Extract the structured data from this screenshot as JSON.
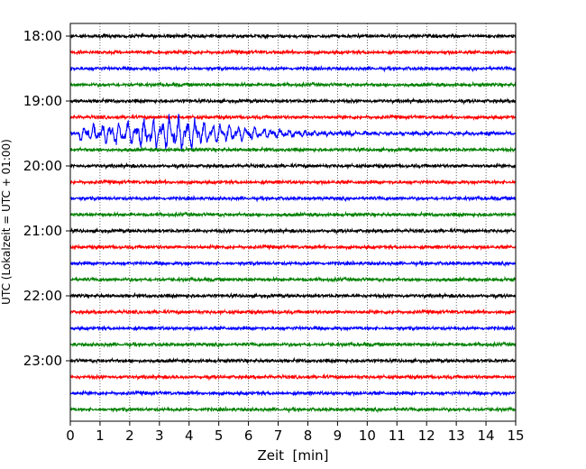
{
  "chart_data": {
    "type": "line",
    "title": "",
    "xlabel": "Zeit  [min]",
    "ylabel": "UTC (Lokalzeit = UTC + 01:00)",
    "xlim": [
      0,
      15
    ],
    "x_ticks": [
      "0",
      "1",
      "2",
      "3",
      "4",
      "5",
      "6",
      "7",
      "8",
      "9",
      "10",
      "11",
      "12",
      "13",
      "14",
      "15"
    ],
    "y_tick_labels": [
      "18:00",
      "19:00",
      "20:00",
      "21:00",
      "22:00",
      "23:00"
    ],
    "y_tick_rows": [
      0,
      4,
      8,
      12,
      16,
      20
    ],
    "grid": "vertical dotted lines at each minute",
    "trace_colors": [
      "#000000",
      "#ff0000",
      "#0000ff",
      "#008000"
    ],
    "rows": [
      {
        "start": "18:00",
        "color": "#000000"
      },
      {
        "start": "18:15",
        "color": "#ff0000"
      },
      {
        "start": "18:30",
        "color": "#0000ff"
      },
      {
        "start": "18:45",
        "color": "#008000"
      },
      {
        "start": "19:00",
        "color": "#000000"
      },
      {
        "start": "19:15",
        "color": "#ff0000"
      },
      {
        "start": "19:30",
        "color": "#0000ff",
        "event": {
          "onset_min": 0.3,
          "peak_min": 3.7,
          "decay_end_min": 11,
          "peak_amplitude_rows": 1.1
        }
      },
      {
        "start": "19:45",
        "color": "#008000"
      },
      {
        "start": "20:00",
        "color": "#000000"
      },
      {
        "start": "20:15",
        "color": "#ff0000"
      },
      {
        "start": "20:30",
        "color": "#0000ff"
      },
      {
        "start": "20:45",
        "color": "#008000"
      },
      {
        "start": "21:00",
        "color": "#000000"
      },
      {
        "start": "21:15",
        "color": "#ff0000"
      },
      {
        "start": "21:30",
        "color": "#0000ff"
      },
      {
        "start": "21:45",
        "color": "#008000"
      },
      {
        "start": "22:00",
        "color": "#000000"
      },
      {
        "start": "22:15",
        "color": "#ff0000"
      },
      {
        "start": "22:30",
        "color": "#0000ff"
      },
      {
        "start": "22:45",
        "color": "#008000"
      },
      {
        "start": "23:00",
        "color": "#000000"
      },
      {
        "start": "23:15",
        "color": "#ff0000"
      },
      {
        "start": "23:30",
        "color": "#0000ff"
      },
      {
        "start": "23:45",
        "color": "#008000"
      }
    ]
  }
}
